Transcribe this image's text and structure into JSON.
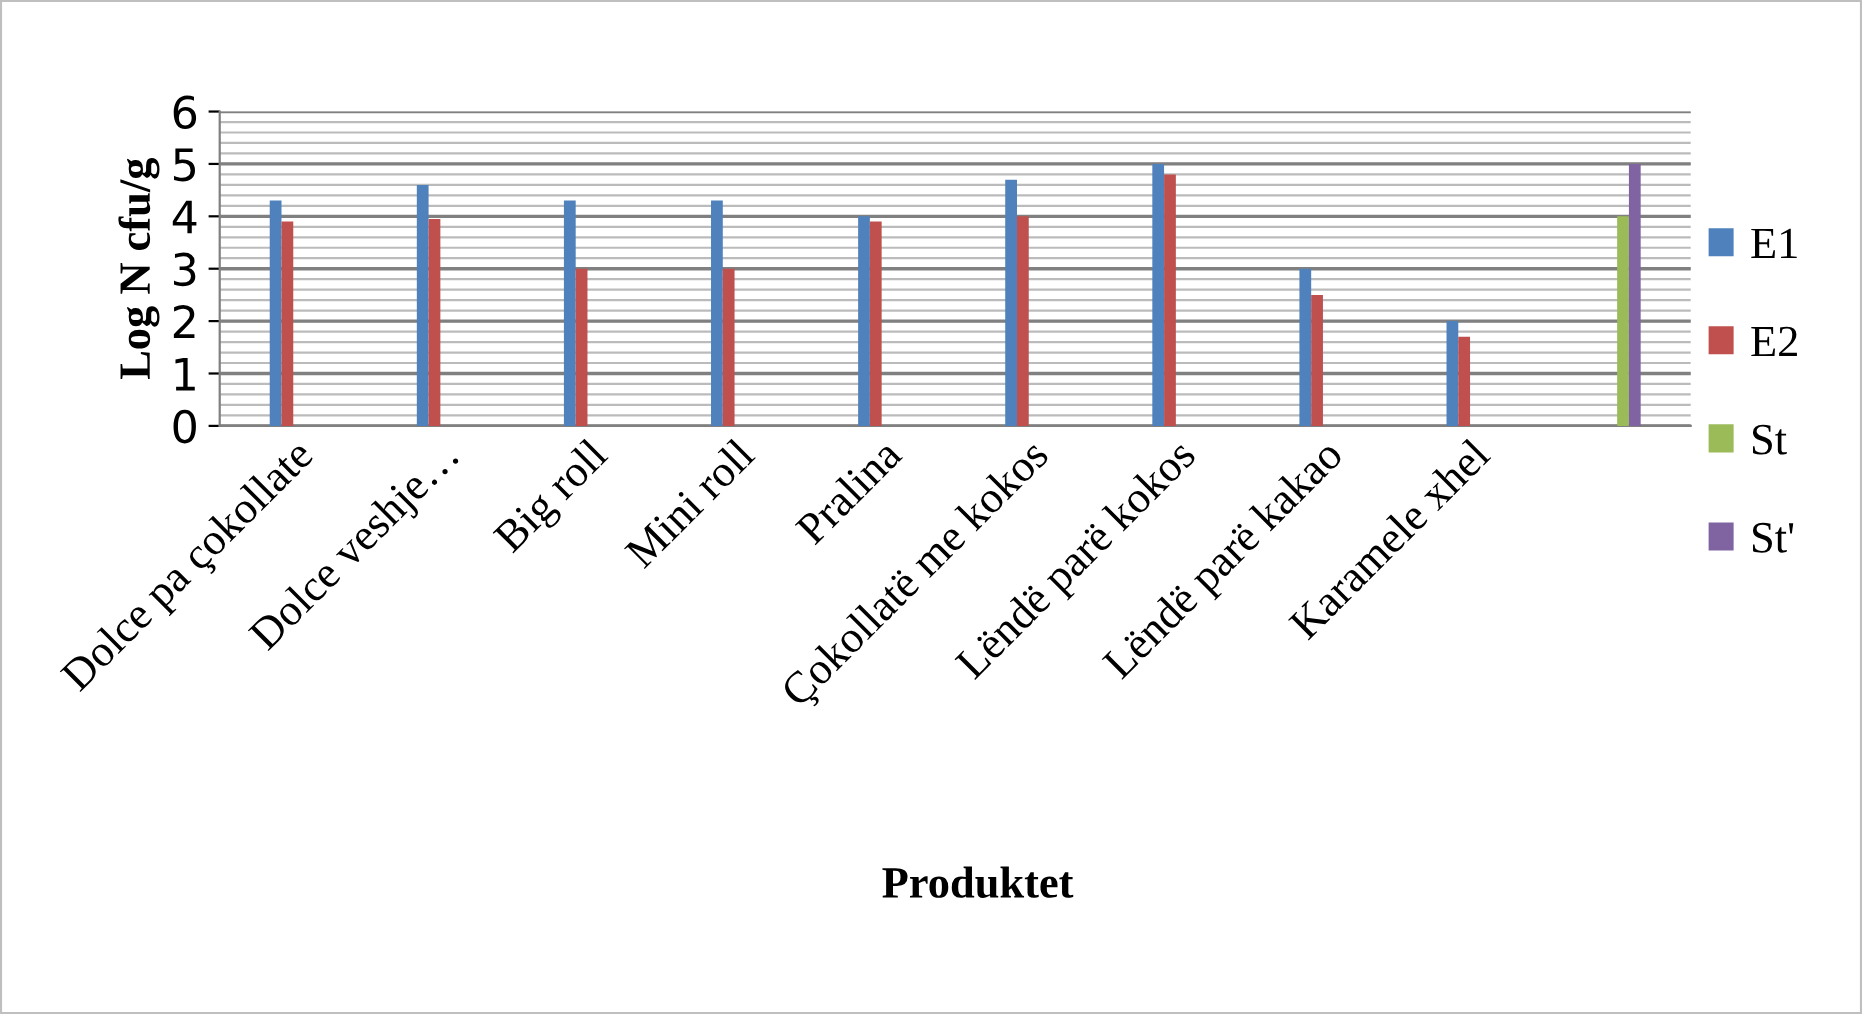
{
  "chart_data": {
    "type": "bar",
    "xlabel": "Produktet",
    "ylabel": "Log N cfu/g",
    "categories": [
      "Dolce pa çokollate",
      "Dolce veshje…",
      "Big roll",
      "Mini roll",
      "Pralina",
      "Çokollatë me kokos",
      "Lëndë parë kokos",
      "Lëndë parë kakao",
      "Karamele xhel",
      null
    ],
    "series": [
      {
        "name": "E1",
        "color": "#4f81bd",
        "values": [
          4.3,
          4.6,
          4.3,
          4.3,
          4.0,
          4.7,
          5.0,
          3.0,
          2.0,
          null
        ]
      },
      {
        "name": "E2",
        "color": "#c0504d",
        "values": [
          3.9,
          3.95,
          3.0,
          3.0,
          3.9,
          4.0,
          4.8,
          2.5,
          1.7,
          null
        ]
      },
      {
        "name": "St",
        "color": "#9bbb59",
        "values": [
          null,
          null,
          null,
          null,
          null,
          null,
          null,
          null,
          null,
          4.0
        ]
      },
      {
        "name": "St'",
        "color": "#8064a2",
        "values": [
          null,
          null,
          null,
          null,
          null,
          null,
          null,
          null,
          null,
          5.0
        ]
      }
    ],
    "ylim": [
      0,
      6
    ],
    "yticks": [
      0,
      1,
      2,
      3,
      4,
      5,
      6
    ],
    "grid": "y",
    "legend": "right"
  }
}
